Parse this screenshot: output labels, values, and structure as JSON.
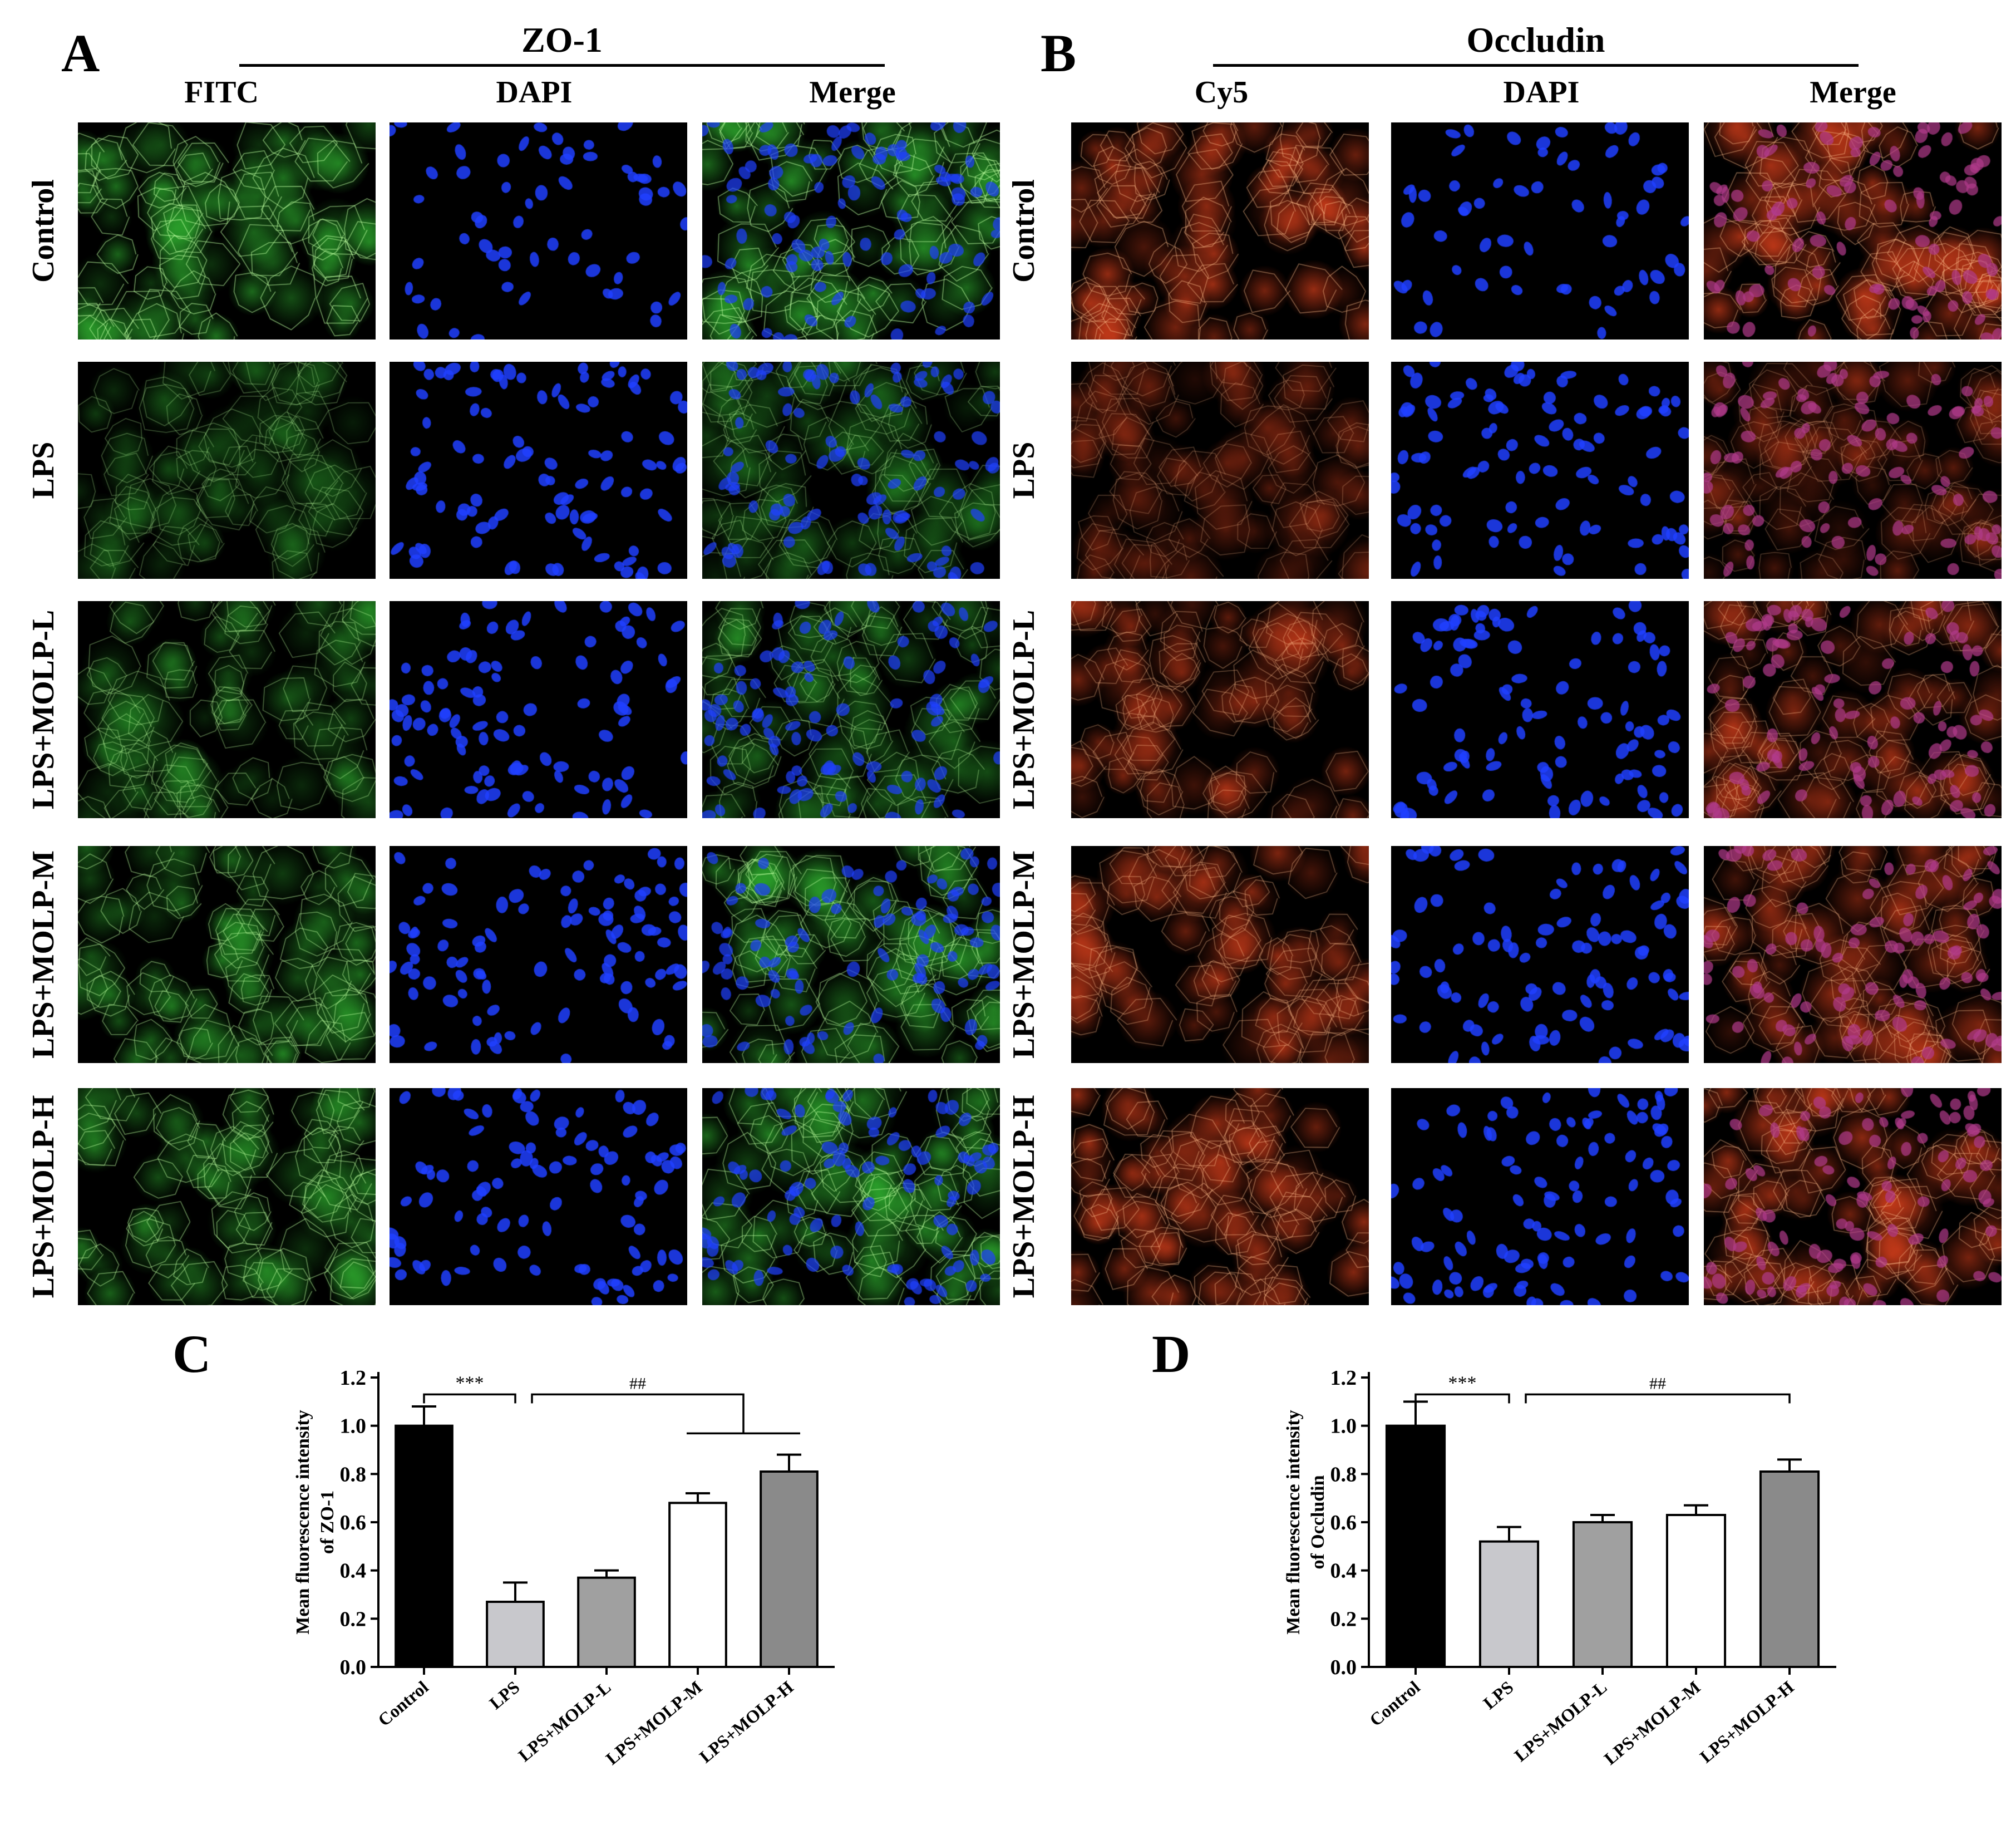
{
  "figure": {
    "panel_a": {
      "letter": "A",
      "group_title": "ZO-1",
      "columns": [
        "FITC",
        "DAPI",
        "Merge"
      ]
    },
    "panel_b": {
      "letter": "B",
      "group_title": "Occludin",
      "columns": [
        "Cy5",
        "DAPI",
        "Merge"
      ]
    },
    "rows": [
      "Control",
      "LPS",
      "LPS+MOLP-L",
      "LPS+MOLP-M",
      "LPS+MOLP-H"
    ],
    "panel_c": {
      "letter": "C"
    },
    "panel_d": {
      "letter": "D"
    },
    "colors": {
      "fitc_green": "#2fae2f",
      "dapi_blue": "#2040ff",
      "cy5_red": "#d9401c",
      "merge_magenta": "#b03a8a"
    }
  },
  "chart_data": [
    {
      "type": "bar",
      "panel": "C",
      "categories": [
        "Control",
        "LPS",
        "LPS+MOLP-L",
        "LPS+MOLP-M",
        "LPS+MOLP-H"
      ],
      "values": [
        1.0,
        0.27,
        0.37,
        0.68,
        0.81
      ],
      "errors": [
        0.08,
        0.08,
        0.03,
        0.04,
        0.07
      ],
      "bar_colors": [
        "#000000",
        "#c8c8cc",
        "#a0a0a0",
        "#ffffff",
        "#8a8a8a"
      ],
      "ylabel": "Mean fluorescence intensity of ZO-1",
      "ylim": [
        0,
        1.2
      ],
      "yticks": [
        "0.0",
        "0.2",
        "0.4",
        "0.6",
        "0.8",
        "1.0",
        "1.2"
      ],
      "annotations": [
        {
          "text": "***",
          "from": "Control",
          "to": "LPS"
        },
        {
          "text": "##",
          "from": "LPS",
          "to": "LPS+MOLP-M,LPS+MOLP-H"
        }
      ]
    },
    {
      "type": "bar",
      "panel": "D",
      "categories": [
        "Control",
        "LPS",
        "LPS+MOLP-L",
        "LPS+MOLP-M",
        "LPS+MOLP-H"
      ],
      "values": [
        1.0,
        0.52,
        0.6,
        0.63,
        0.81
      ],
      "errors": [
        0.1,
        0.06,
        0.03,
        0.04,
        0.05
      ],
      "bar_colors": [
        "#000000",
        "#c8c8cc",
        "#a0a0a0",
        "#ffffff",
        "#8a8a8a"
      ],
      "ylabel": "Mean fluorescence intensity of Occludin",
      "ylim": [
        0,
        1.2
      ],
      "yticks": [
        "0.0",
        "0.2",
        "0.4",
        "0.6",
        "0.8",
        "1.0",
        "1.2"
      ],
      "annotations": [
        {
          "text": "***",
          "from": "Control",
          "to": "LPS"
        },
        {
          "text": "##",
          "from": "LPS",
          "to": "LPS+MOLP-H"
        }
      ]
    }
  ]
}
